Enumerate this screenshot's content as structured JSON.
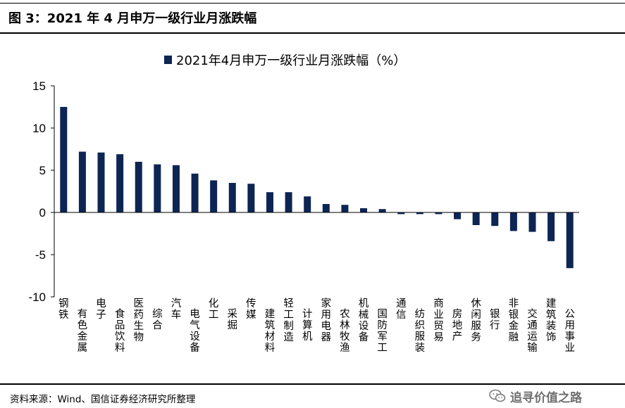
{
  "figure": {
    "title": "图 3：2021 年 4 月申万一级行业月涨跌幅",
    "source": "资料来源：Wind、国信证券经济研究所整理",
    "watermark": "追寻价值之路",
    "watermark_icon": "wechat-icon"
  },
  "colors": {
    "bar": "#0d2553",
    "axis": "#000000"
  },
  "chart_data": {
    "type": "bar",
    "title": "",
    "legend": {
      "entry": "2021年4月申万一级行业月涨跌幅（%）",
      "placement": "top-center"
    },
    "xlabel": "",
    "ylabel": "",
    "ylim": [
      -10,
      15
    ],
    "yticks": [
      15,
      10,
      5,
      0,
      -5,
      -10
    ],
    "grid": false,
    "categories": [
      "钢铁",
      "有色金属",
      "电子",
      "食品饮料",
      "医药生物",
      "综合",
      "汽车",
      "电气设备",
      "化工",
      "采掘",
      "传媒",
      "建筑材料",
      "轻工制造",
      "计算机",
      "家用电器",
      "农林牧渔",
      "机械设备",
      "国防军工",
      "通信",
      "纺织服装",
      "商业贸易",
      "房地产",
      "休闲服务",
      "银行",
      "非银金融",
      "交通运输",
      "建筑装饰",
      "公用事业"
    ],
    "series": [
      {
        "name": "2021年4月申万一级行业月涨跌幅（%）",
        "values": [
          12.5,
          7.2,
          7.1,
          6.9,
          6.0,
          5.7,
          5.6,
          4.6,
          3.8,
          3.5,
          3.4,
          2.4,
          2.4,
          1.9,
          1.0,
          0.9,
          0.5,
          0.4,
          -0.2,
          -0.2,
          -0.2,
          -0.8,
          -1.5,
          -1.6,
          -2.2,
          -2.3,
          -3.4,
          -6.6
        ]
      }
    ]
  }
}
